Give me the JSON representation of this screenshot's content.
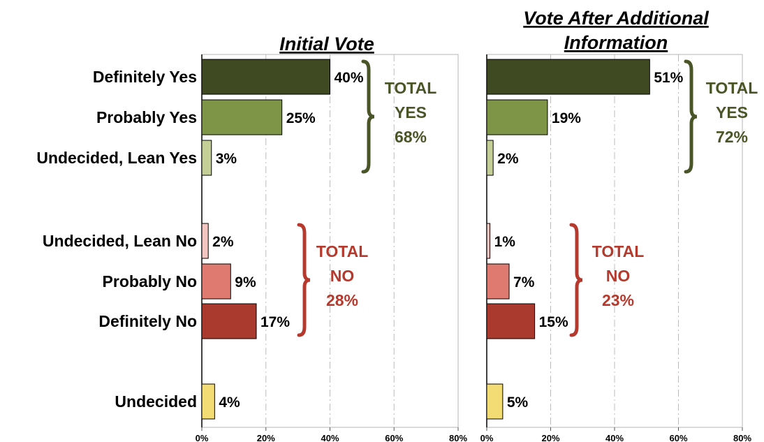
{
  "chart_data": [
    {
      "type": "bar",
      "orientation": "horizontal",
      "title": "Initial Vote",
      "categories": [
        "Definitely Yes",
        "Probably Yes",
        "Undecided, Lean Yes",
        "Undecided, Lean No",
        "Probably No",
        "Definitely No",
        "Undecided"
      ],
      "values": [
        40,
        25,
        3,
        2,
        9,
        17,
        4
      ],
      "value_labels": [
        "40%",
        "25%",
        "3%",
        "2%",
        "9%",
        "17%",
        "4%"
      ],
      "bar_colors": [
        "#3f4a22",
        "#7e9447",
        "#c3cf96",
        "#f3c6c2",
        "#de7a70",
        "#a93a2d",
        "#f4dc74"
      ],
      "xlim": [
        0,
        80
      ],
      "xticks": [
        "0%",
        "20%",
        "40%",
        "60%",
        "80%"
      ],
      "grid": "vertical dashed",
      "annotations": [
        {
          "group": "yes",
          "lines": [
            "TOTAL",
            "YES",
            "68%"
          ],
          "color": "#4a5527"
        },
        {
          "group": "no",
          "lines": [
            "TOTAL",
            "NO",
            "28%"
          ],
          "color": "#b53a2d"
        }
      ]
    },
    {
      "type": "bar",
      "orientation": "horizontal",
      "title_lines": [
        "Vote After Additional",
        "Information"
      ],
      "categories": [
        "Definitely Yes",
        "Probably Yes",
        "Undecided, Lean Yes",
        "Undecided, Lean No",
        "Probably No",
        "Definitely No",
        "Undecided"
      ],
      "values": [
        51,
        19,
        2,
        1,
        7,
        15,
        5
      ],
      "value_labels": [
        "51%",
        "19%",
        "2%",
        "1%",
        "7%",
        "15%",
        "5%"
      ],
      "bar_colors": [
        "#3f4a22",
        "#7e9447",
        "#c3cf96",
        "#f3c6c2",
        "#de7a70",
        "#a93a2d",
        "#f4dc74"
      ],
      "xlim": [
        0,
        80
      ],
      "xticks": [
        "0%",
        "20%",
        "40%",
        "60%",
        "80%"
      ],
      "grid": "vertical dashed",
      "annotations": [
        {
          "group": "yes",
          "lines": [
            "TOTAL",
            "YES",
            "72%"
          ],
          "color": "#4a5527"
        },
        {
          "group": "no",
          "lines": [
            "TOTAL",
            "NO",
            "23%"
          ],
          "color": "#b53a2d"
        }
      ]
    }
  ]
}
